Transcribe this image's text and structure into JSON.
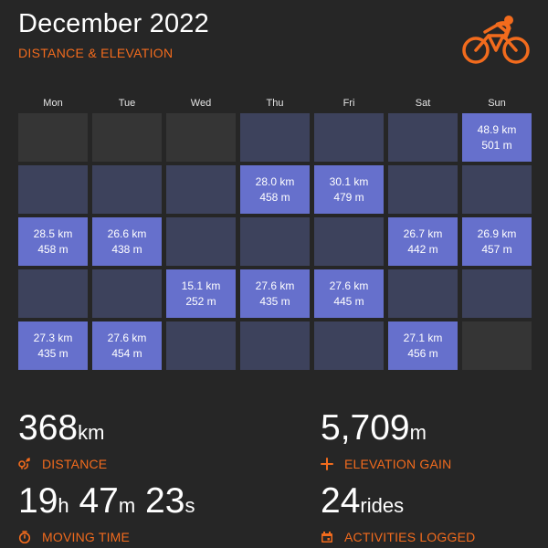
{
  "header": {
    "title": "December 2022",
    "subtitle": "DISTANCE & ELEVATION",
    "icon": "cyclist-icon",
    "accent": "#f26b1d"
  },
  "calendar": {
    "days": [
      "Mon",
      "Tue",
      "Wed",
      "Thu",
      "Fri",
      "Sat",
      "Sun"
    ],
    "weeks": [
      [
        {
          "state": "empty"
        },
        {
          "state": "empty"
        },
        {
          "state": "empty"
        },
        {
          "state": "rest"
        },
        {
          "state": "rest"
        },
        {
          "state": "rest"
        },
        {
          "state": "ride",
          "distance": "48.9 km",
          "elevation": "501 m"
        }
      ],
      [
        {
          "state": "rest"
        },
        {
          "state": "rest"
        },
        {
          "state": "rest"
        },
        {
          "state": "ride",
          "distance": "28.0 km",
          "elevation": "458 m"
        },
        {
          "state": "ride",
          "distance": "30.1 km",
          "elevation": "479 m"
        },
        {
          "state": "rest"
        },
        {
          "state": "rest"
        }
      ],
      [
        {
          "state": "ride",
          "distance": "28.5 km",
          "elevation": "458 m"
        },
        {
          "state": "ride",
          "distance": "26.6 km",
          "elevation": "438 m"
        },
        {
          "state": "rest"
        },
        {
          "state": "rest"
        },
        {
          "state": "rest"
        },
        {
          "state": "ride",
          "distance": "26.7 km",
          "elevation": "442 m"
        },
        {
          "state": "ride",
          "distance": "26.9 km",
          "elevation": "457 m"
        }
      ],
      [
        {
          "state": "rest"
        },
        {
          "state": "rest"
        },
        {
          "state": "ride",
          "distance": "15.1 km",
          "elevation": "252 m"
        },
        {
          "state": "ride",
          "distance": "27.6 km",
          "elevation": "435 m"
        },
        {
          "state": "ride",
          "distance": "27.6 km",
          "elevation": "445 m"
        },
        {
          "state": "rest"
        },
        {
          "state": "rest"
        }
      ],
      [
        {
          "state": "ride",
          "distance": "27.3 km",
          "elevation": "435 m"
        },
        {
          "state": "ride",
          "distance": "27.6 km",
          "elevation": "454 m"
        },
        {
          "state": "rest"
        },
        {
          "state": "rest"
        },
        {
          "state": "rest"
        },
        {
          "state": "ride",
          "distance": "27.1 km",
          "elevation": "456 m"
        },
        {
          "state": "empty"
        }
      ]
    ],
    "colors": {
      "empty": "#353535",
      "rest": "#3d425c",
      "ride": "#6670cc"
    }
  },
  "stats": {
    "distance": {
      "value": "368",
      "unit": "km",
      "label": "DISTANCE",
      "icon": "route-pin-icon"
    },
    "elevation": {
      "value": "5,709",
      "unit": "m",
      "label": "ELEVATION GAIN",
      "icon": "plus-icon"
    },
    "moving_time": {
      "h": "19",
      "h_unit": "h",
      "m": "47",
      "m_unit": "m",
      "s": "23",
      "s_unit": "s",
      "label": "MOVING TIME",
      "icon": "stopwatch-icon"
    },
    "activities": {
      "value": "24",
      "unit": "rides",
      "label": "ACTIVITIES LOGGED",
      "icon": "calendar-icon"
    }
  }
}
